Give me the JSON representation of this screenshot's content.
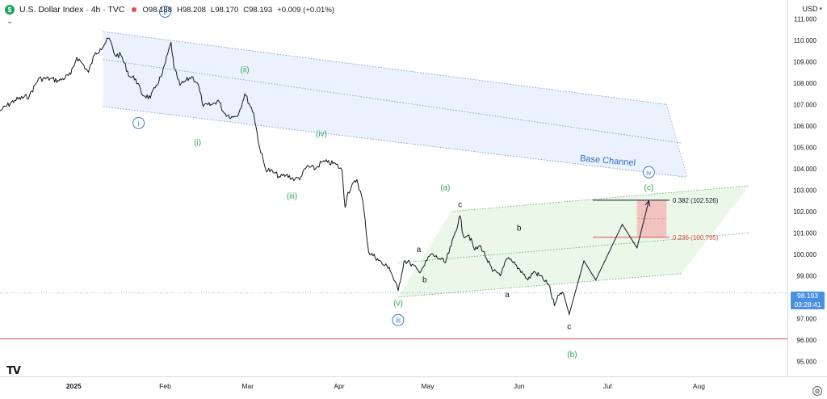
{
  "header": {
    "symbol_badge": "$",
    "title": "U.S. Dollar Index · 4h · TVC",
    "open": "O98.188",
    "high": "H98.208",
    "low": "L98.170",
    "close": "C98.193",
    "change": "+0.009 (+0.01%)"
  },
  "currency_label": "USD",
  "last_price": {
    "value": "98.193",
    "countdown": "03:28:41"
  },
  "logo_text": "TV",
  "chart_data": {
    "type": "line",
    "title": "U.S. Dollar Index · 4h · TVC",
    "ylim": [
      94.3,
      111.5
    ],
    "y_ticks": [
      "111.000",
      "110.000",
      "109.000",
      "108.000",
      "107.000",
      "106.000",
      "105.000",
      "104.000",
      "103.000",
      "102.000",
      "101.000",
      "100.000",
      "99.000",
      "98.000",
      "97.000",
      "96.000",
      "95.000"
    ],
    "y_tick_values": [
      111,
      110,
      109,
      108,
      107,
      106,
      105,
      104,
      103,
      102,
      101,
      100,
      99,
      98,
      97,
      96,
      95
    ],
    "x_ticks": [
      {
        "label": "2025",
        "date": "2025-01-01"
      },
      {
        "label": "Feb",
        "date": "2025-02-01"
      },
      {
        "label": "Mar",
        "date": "2025-03-01"
      },
      {
        "label": "Apr",
        "date": "2025-04-01"
      },
      {
        "label": "May",
        "date": "2025-05-01"
      },
      {
        "label": "Jun",
        "date": "2025-06-01"
      },
      {
        "label": "Jul",
        "date": "2025-07-01"
      },
      {
        "label": "Aug",
        "date": "2025-08-01"
      }
    ],
    "xlim": [
      "2024-12-07",
      "2025-08-31"
    ],
    "series": [
      {
        "values": [
          [
            "2024-12-07",
            106.7
          ],
          [
            "2024-12-12",
            107.2
          ],
          [
            "2024-12-17",
            107.4
          ],
          [
            "2024-12-20",
            108.2
          ],
          [
            "2024-12-24",
            108.2
          ],
          [
            "2024-12-27",
            108.1
          ],
          [
            "2024-12-31",
            108.4
          ],
          [
            "2025-01-02",
            109.2
          ],
          [
            "2025-01-04",
            108.9
          ],
          [
            "2025-01-06",
            108.5
          ],
          [
            "2025-01-08",
            109.3
          ],
          [
            "2025-01-10",
            109.6
          ],
          [
            "2025-01-13",
            110.1
          ],
          [
            "2025-01-15",
            109.3
          ],
          [
            "2025-01-17",
            109.3
          ],
          [
            "2025-01-20",
            108.3
          ],
          [
            "2025-01-22",
            108.2
          ],
          [
            "2025-01-24",
            107.5
          ],
          [
            "2025-01-27",
            107.3
          ],
          [
            "2025-01-29",
            107.9
          ],
          [
            "2025-01-31",
            108.4
          ],
          [
            "2025-02-03",
            109.9
          ],
          [
            "2025-02-04",
            108.7
          ],
          [
            "2025-02-06",
            107.9
          ],
          [
            "2025-02-08",
            108.1
          ],
          [
            "2025-02-10",
            108.3
          ],
          [
            "2025-02-12",
            108.0
          ],
          [
            "2025-02-14",
            106.9
          ],
          [
            "2025-02-17",
            107.0
          ],
          [
            "2025-02-19",
            107.2
          ],
          [
            "2025-02-21",
            106.6
          ],
          [
            "2025-02-24",
            106.4
          ],
          [
            "2025-02-26",
            106.6
          ],
          [
            "2025-02-28",
            107.5
          ],
          [
            "2025-03-03",
            106.6
          ],
          [
            "2025-03-05",
            105.0
          ],
          [
            "2025-03-07",
            104.0
          ],
          [
            "2025-03-10",
            103.8
          ],
          [
            "2025-03-12",
            103.6
          ],
          [
            "2025-03-14",
            103.7
          ],
          [
            "2025-03-17",
            103.5
          ],
          [
            "2025-03-19",
            103.6
          ],
          [
            "2025-03-21",
            104.1
          ],
          [
            "2025-03-24",
            104.0
          ],
          [
            "2025-03-26",
            104.3
          ],
          [
            "2025-03-28",
            104.3
          ],
          [
            "2025-03-31",
            104.2
          ],
          [
            "2025-04-02",
            103.9
          ],
          [
            "2025-04-03",
            102.2
          ],
          [
            "2025-04-04",
            102.9
          ],
          [
            "2025-04-07",
            103.5
          ],
          [
            "2025-04-09",
            102.5
          ],
          [
            "2025-04-11",
            100.1
          ],
          [
            "2025-04-14",
            99.8
          ],
          [
            "2025-04-16",
            99.5
          ],
          [
            "2025-04-18",
            99.4
          ],
          [
            "2025-04-21",
            98.3
          ],
          [
            "2025-04-23",
            99.7
          ],
          [
            "2025-04-25",
            99.6
          ],
          [
            "2025-04-28",
            99.2
          ],
          [
            "2025-04-30",
            99.5
          ],
          [
            "2025-05-02",
            100.0
          ],
          [
            "2025-05-05",
            99.8
          ],
          [
            "2025-05-07",
            99.6
          ],
          [
            "2025-05-09",
            100.4
          ],
          [
            "2025-05-12",
            101.8
          ],
          [
            "2025-05-13",
            100.9
          ],
          [
            "2025-05-15",
            100.9
          ],
          [
            "2025-05-17",
            100.2
          ],
          [
            "2025-05-19",
            100.4
          ],
          [
            "2025-05-21",
            99.8
          ],
          [
            "2025-05-23",
            99.2
          ],
          [
            "2025-05-26",
            99.1
          ],
          [
            "2025-05-28",
            99.8
          ],
          [
            "2025-05-30",
            99.6
          ],
          [
            "2025-06-02",
            99.2
          ],
          [
            "2025-06-04",
            98.8
          ],
          [
            "2025-06-06",
            99.2
          ],
          [
            "2025-06-09",
            98.9
          ],
          [
            "2025-06-11",
            98.6
          ],
          [
            "2025-06-13",
            97.6
          ],
          [
            "2025-06-15",
            98.2
          ],
          [
            "2025-06-16",
            98.19
          ]
        ]
      }
    ],
    "base_channel": {
      "upper": [
        [
          "2025-01-11",
          110.4
        ],
        [
          "2025-07-21",
          107.0
        ]
      ],
      "middle": [
        [
          "2025-01-11",
          109.1
        ],
        [
          "2025-07-26",
          105.2
        ]
      ],
      "lower": [
        [
          "2025-01-11",
          106.9
        ],
        [
          "2025-07-28",
          103.6
        ]
      ],
      "label": "Base Channel"
    },
    "correction_channel": {
      "upper": [
        [
          "2025-05-09",
          102.0
        ],
        [
          "2025-08-18",
          103.2
        ]
      ],
      "middle": [
        [
          "2025-04-21",
          99.6
        ],
        [
          "2025-08-18",
          101.0
        ]
      ],
      "lower": [
        [
          "2025-04-21",
          98.0
        ],
        [
          "2025-07-26",
          99.1
        ]
      ]
    },
    "projection_path": [
      [
        "2025-06-16",
        98.2
      ],
      [
        "2025-06-18",
        97.2
      ],
      [
        "2025-06-23",
        99.7
      ],
      [
        "2025-06-27",
        98.8
      ],
      [
        "2025-07-06",
        101.4
      ],
      [
        "2025-07-11",
        100.3
      ],
      [
        "2025-07-15",
        102.5
      ]
    ],
    "target_zone": {
      "from": "2025-07-11",
      "to": "2025-07-21",
      "low": 100.795,
      "high": 102.526
    },
    "fibonacci": [
      {
        "label": "0.382 (102.526)",
        "value": 102.526,
        "color": "#131722",
        "from": "2025-06-26",
        "to": "2025-07-22"
      },
      {
        "label": "0.236 (100.795)",
        "value": 100.795,
        "color": "#e05050",
        "from": "2025-06-26",
        "to": "2025-07-22"
      }
    ],
    "support_line": {
      "value": 96.05,
      "color": "#e05050"
    },
    "last_price_line": 98.193,
    "wave_labels": [
      {
        "text": "ii",
        "style": "circle",
        "color": "#3d7cc9",
        "date": "2025-02-01",
        "value": 111.2
      },
      {
        "text": "i",
        "style": "circle",
        "color": "#3d7cc9",
        "date": "2025-01-23",
        "value": 106.0
      },
      {
        "text": "iii",
        "style": "circle",
        "color": "#3d7cc9",
        "date": "2025-04-21",
        "value": 96.8
      },
      {
        "text": "iv",
        "style": "circle",
        "color": "#3d7cc9",
        "date": "2025-07-15",
        "value": 103.7
      },
      {
        "text": "(ii)",
        "style": "plain",
        "color": "#2fa84f",
        "date": "2025-02-28",
        "value": 108.5
      },
      {
        "text": "(i)",
        "style": "plain",
        "color": "#2fa84f",
        "date": "2025-02-12",
        "value": 105.1
      },
      {
        "text": "(iv)",
        "style": "plain",
        "color": "#2fa84f",
        "date": "2025-03-26",
        "value": 105.5
      },
      {
        "text": "(iii)",
        "style": "plain",
        "color": "#2fa84f",
        "date": "2025-03-16",
        "value": 102.6
      },
      {
        "text": "(v)",
        "style": "plain",
        "color": "#2fa84f",
        "date": "2025-04-21",
        "value": 97.6
      },
      {
        "text": "(a)",
        "style": "plain",
        "color": "#2fa84f",
        "date": "2025-05-07",
        "value": 103.0
      },
      {
        "text": "(c)",
        "style": "plain",
        "color": "#2fa84f",
        "date": "2025-07-15",
        "value": 103.0
      },
      {
        "text": "(b)",
        "style": "plain",
        "color": "#2fa84f",
        "date": "2025-06-19",
        "value": 95.2
      },
      {
        "text": "a",
        "style": "plain",
        "color": "#131722",
        "date": "2025-04-28",
        "value": 100.1
      },
      {
        "text": "b",
        "style": "plain",
        "color": "#131722",
        "date": "2025-04-30",
        "value": 98.7
      },
      {
        "text": "c",
        "style": "plain",
        "color": "#131722",
        "date": "2025-05-12",
        "value": 102.2
      },
      {
        "text": "a",
        "style": "plain",
        "color": "#131722",
        "date": "2025-05-28",
        "value": 98.0
      },
      {
        "text": "b",
        "style": "plain",
        "color": "#131722",
        "date": "2025-06-01",
        "value": 101.1
      },
      {
        "text": "c",
        "style": "plain",
        "color": "#131722",
        "date": "2025-06-18",
        "value": 96.5
      }
    ],
    "grid": false,
    "legend": "none"
  }
}
